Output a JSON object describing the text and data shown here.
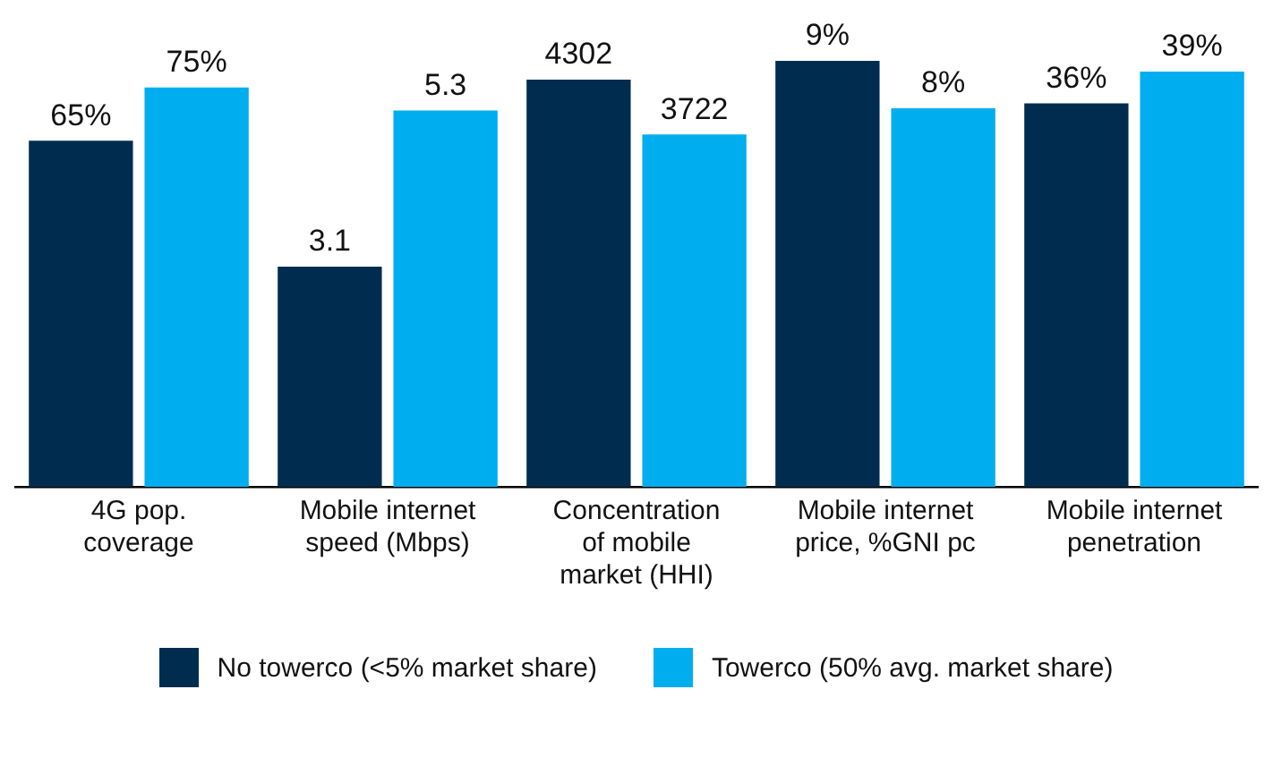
{
  "chart_data": [
    {
      "type": "bar",
      "categories": [
        "4G pop.\ncoverage"
      ],
      "legend": "bottom",
      "series": [
        {
          "name": "No towerco (<5% market share)",
          "color": "#002d4f",
          "values": [
            65
          ],
          "value_labels": [
            "65%"
          ]
        },
        {
          "name": "Towerco (50% avg. market share)",
          "color": "#00aeef",
          "values": [
            75
          ],
          "value_labels": [
            "75%"
          ]
        }
      ]
    },
    {
      "type": "bar",
      "categories": [
        "Mobile internet\nspeed (Mbps)"
      ],
      "data_labels": true,
      "series": [
        {
          "color": "#002d4f",
          "values": [
            3.1
          ]
        },
        {
          "color": "#00aeef",
          "values": [
            5.3
          ]
        }
      ]
    },
    {
      "type": "bar",
      "categories": [
        "Concentration\nof mobile\nmarket (HHI)"
      ],
      "data_labels": true,
      "series": [
        {
          "color": "#002d4f",
          "values": [
            4302
          ]
        },
        {
          "color": "#00aeef",
          "values": [
            3722
          ]
        }
      ]
    },
    {
      "type": "bar",
      "categories": [
        "Mobile internet\nprice, %GNI pc"
      ],
      "series": [
        {
          "color": "#002d4f",
          "values": [
            9
          ],
          "value_labels": [
            "9%"
          ]
        },
        {
          "color": "#00aeef",
          "values": [
            8
          ],
          "value_labels": [
            "8%"
          ]
        }
      ]
    },
    {
      "type": "bar",
      "categories": [
        "Mobile internet\npenetration"
      ],
      "series": [
        {
          "color": "#002d4f",
          "values": [
            36
          ],
          "value_labels": [
            "36%"
          ]
        },
        {
          "color": "#00aeef",
          "values": [
            39
          ],
          "value_labels": [
            "39%"
          ]
        }
      ]
    }
  ]
}
